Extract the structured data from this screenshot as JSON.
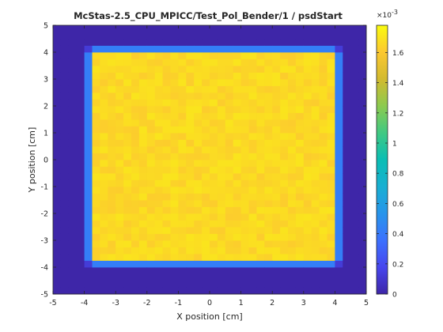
{
  "chart_data": {
    "type": "heatmap",
    "title": "McStas-2.5_CPU_MPICC/Test_Pol_Bender/1 / psdStart",
    "xlabel": "X position [cm]",
    "ylabel": "Y position [cm]",
    "xlim": [
      -5,
      5
    ],
    "ylim": [
      -5,
      5
    ],
    "x_ticks": [
      "-5",
      "-4",
      "-3",
      "-2",
      "-1",
      "0",
      "1",
      "2",
      "3",
      "4",
      "5"
    ],
    "y_ticks": [
      "-5",
      "-4",
      "-3",
      "-2",
      "-1",
      "0",
      "1",
      "2",
      "3",
      "4",
      "5"
    ],
    "grid_cells": 40,
    "regions": [
      {
        "name": "background",
        "xlim": [
          -5,
          5
        ],
        "ylim": [
          -5,
          5
        ],
        "value": 0.0
      },
      {
        "name": "edge-frame",
        "xlim": [
          -4.1,
          4.2
        ],
        "ylim": [
          -4.1,
          4.2
        ],
        "value": 0.00042
      },
      {
        "name": "corners",
        "value": 0.00012
      },
      {
        "name": "interior",
        "xlim": [
          -3.8,
          3.9
        ],
        "ylim": [
          -3.8,
          4.0
        ],
        "value": 0.00166
      }
    ],
    "colorbar": {
      "min": 0,
      "max": 0.00178,
      "ticks": [
        "0",
        "0.2",
        "0.4",
        "0.6",
        "0.8",
        "1",
        "1.2",
        "1.4",
        "1.6"
      ],
      "tick_values": [
        0,
        0.2,
        0.4,
        0.6,
        0.8,
        1.0,
        1.2,
        1.4,
        1.6
      ],
      "multiplier": "×10",
      "exponent": "-3",
      "colormap": "parula"
    }
  }
}
